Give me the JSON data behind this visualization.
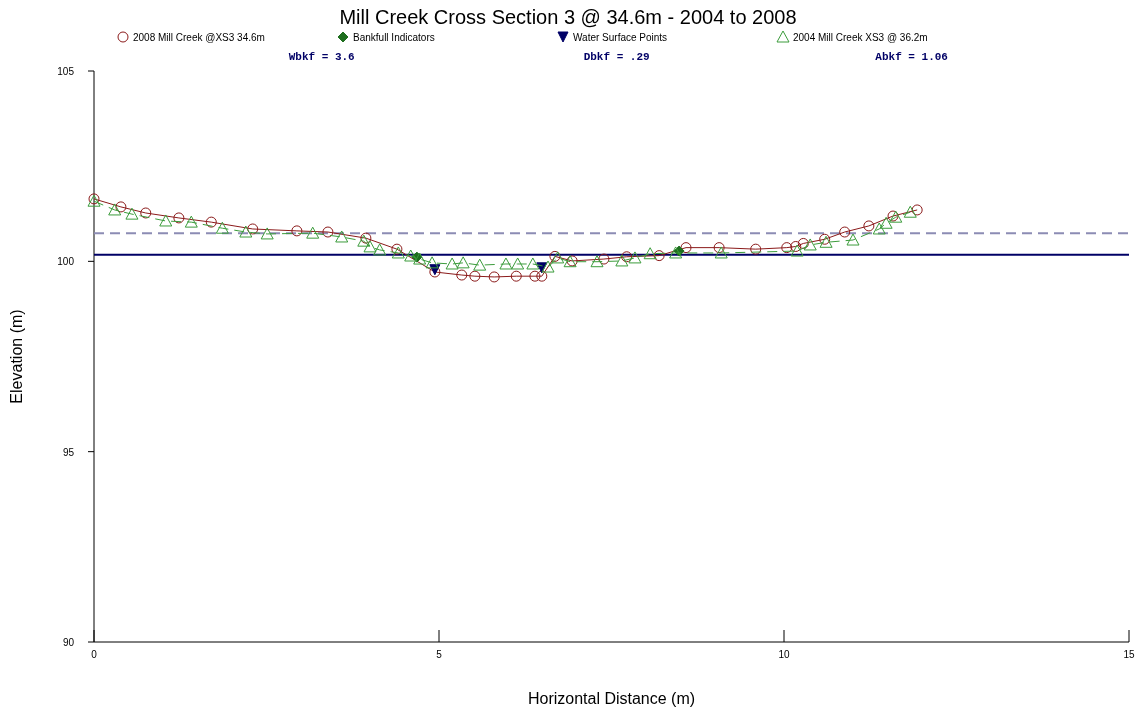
{
  "chart_data": {
    "type": "line",
    "title": "Mill Creek Cross Section 3 @ 34.6m - 2004 to 2008",
    "xlabel": "Horizontal Distance (m)",
    "ylabel": "Elevation (m)",
    "xlim": [
      0,
      15
    ],
    "xticks": [
      0,
      5,
      10,
      15
    ],
    "ylim": [
      90,
      105
    ],
    "yticks": [
      90,
      95,
      100,
      105
    ],
    "grid": false,
    "legend": "top",
    "annotations": [
      "Wbkf = 3.6",
      "Dbkf = .29",
      "Abkf = 1.06"
    ],
    "ref_lines": [
      {
        "axis": "y",
        "value": 100.74,
        "color": "#8c8cb4",
        "line_style": "dashed"
      },
      {
        "axis": "y",
        "value": 100.17,
        "color": "#000066",
        "line_style": "solid"
      }
    ],
    "series": [
      {
        "name": "2008 Mill Creek @XS3 34.6m",
        "color": "#8b1a1a",
        "marker": "circle",
        "line_style": "solid",
        "x": [
          0,
          0.39,
          0.75,
          1.23,
          1.7,
          2.3,
          2.94,
          3.39,
          3.94,
          4.39,
          4.94,
          5.33,
          5.52,
          5.8,
          6.12,
          6.39,
          6.49,
          6.68,
          6.93,
          7.39,
          7.72,
          8.19,
          8.58,
          9.06,
          9.59,
          10.04,
          10.17,
          10.28,
          10.59,
          10.88,
          11.23,
          11.58,
          11.93
        ],
        "values": [
          101.64,
          101.43,
          101.27,
          101.14,
          101.03,
          100.85,
          100.8,
          100.77,
          100.61,
          100.32,
          99.72,
          99.64,
          99.61,
          99.59,
          99.61,
          99.61,
          99.61,
          100.13,
          100.01,
          100.06,
          100.12,
          100.15,
          100.36,
          100.36,
          100.32,
          100.36,
          100.39,
          100.47,
          100.58,
          100.77,
          100.93,
          101.19,
          101.35
        ]
      },
      {
        "name": "Bankfull Indicators",
        "type": "scatter",
        "color": "#1e6e1e",
        "marker": "diamond",
        "x": [
          4.68,
          8.48
        ],
        "values": [
          100.11,
          100.27
        ]
      },
      {
        "name": "Water Surface Points",
        "type": "scatter",
        "color": "#000066",
        "marker": "triangle-down",
        "x": [
          4.94,
          6.49
        ],
        "values": [
          99.78,
          99.83
        ]
      },
      {
        "name": "2004 Mill Creek XS3 @ 36.2m",
        "color": "#3c9c3c",
        "marker": "triangle",
        "line_style": "dashed",
        "x": [
          0,
          0.3,
          0.55,
          1.04,
          1.41,
          1.86,
          2.2,
          2.51,
          3.17,
          3.59,
          3.91,
          4.0,
          4.14,
          4.41,
          4.59,
          4.72,
          4.9,
          5.19,
          5.35,
          5.59,
          5.97,
          6.14,
          6.36,
          6.58,
          6.72,
          6.9,
          7.29,
          7.65,
          7.84,
          8.06,
          8.43,
          9.09,
          10.19,
          10.38,
          10.61,
          11.0,
          11.38,
          11.48,
          11.62,
          11.83
        ],
        "values": [
          101.58,
          101.35,
          101.24,
          101.06,
          101.03,
          100.87,
          100.77,
          100.72,
          100.74,
          100.64,
          100.53,
          100.38,
          100.3,
          100.22,
          100.14,
          100.06,
          99.96,
          99.93,
          99.96,
          99.9,
          99.93,
          99.93,
          99.93,
          99.85,
          100.09,
          99.99,
          99.99,
          100.01,
          100.09,
          100.2,
          100.22,
          100.22,
          100.27,
          100.43,
          100.5,
          100.56,
          100.85,
          101.0,
          101.16,
          101.29
        ]
      }
    ]
  }
}
